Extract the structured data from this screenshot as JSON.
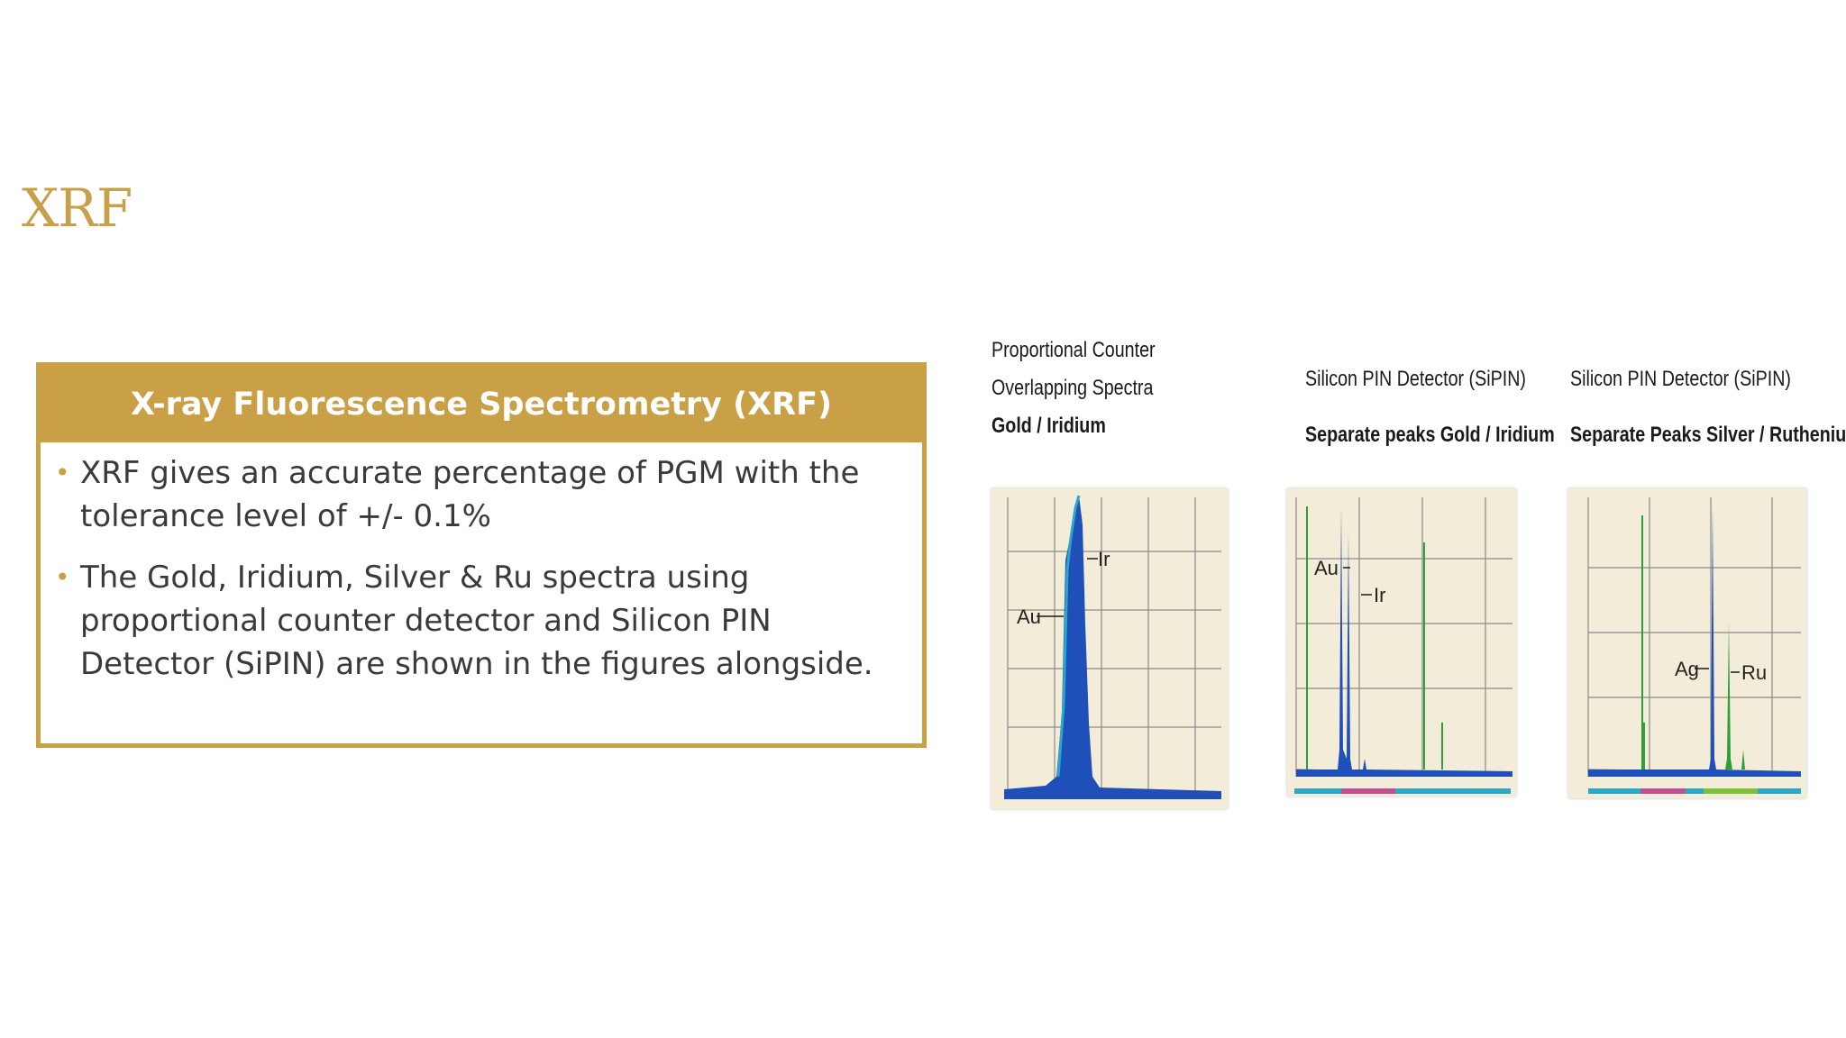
{
  "slide": {
    "title": "XRF"
  },
  "info_box": {
    "header": "X-ray Fluorescence Spectrometry (XRF)",
    "bullets": [
      "XRF gives an accurate percentage of PGM with the tolerance level of +/- 0.1%",
      "The Gold, Iridium, Silver & Ru spectra using proportional counter detector and Silicon PIN Detector (SiPIN) are shown in the figures alongside."
    ],
    "bullet_glyph": "•"
  },
  "figures": [
    {
      "caption_lines": [
        "Proportional Counter",
        "Overlapping Spectra"
      ],
      "caption_bold": "Gold / Iridium",
      "peak_labels": [
        "Ir",
        "Au"
      ]
    },
    {
      "caption_lines": [
        "Silicon PIN Detector (SiPIN)"
      ],
      "caption_bold": "Separate peaks Gold / Iridium",
      "peak_labels": [
        "Au",
        "Ir"
      ]
    },
    {
      "caption_lines": [
        "Silicon PIN Detector (SiPIN)"
      ],
      "caption_bold": "Separate Peaks Silver / Ruthenium",
      "peak_labels": [
        "Ag",
        "Ru"
      ]
    }
  ],
  "colors": {
    "accent": "#c9a046",
    "title": "#c8a04a",
    "spectrum_blue": "#1f4fb8",
    "spectrum_cyan": "#2aa8c8",
    "spectrum_green": "#2f9e3a",
    "grid": "#8a8a8a"
  }
}
